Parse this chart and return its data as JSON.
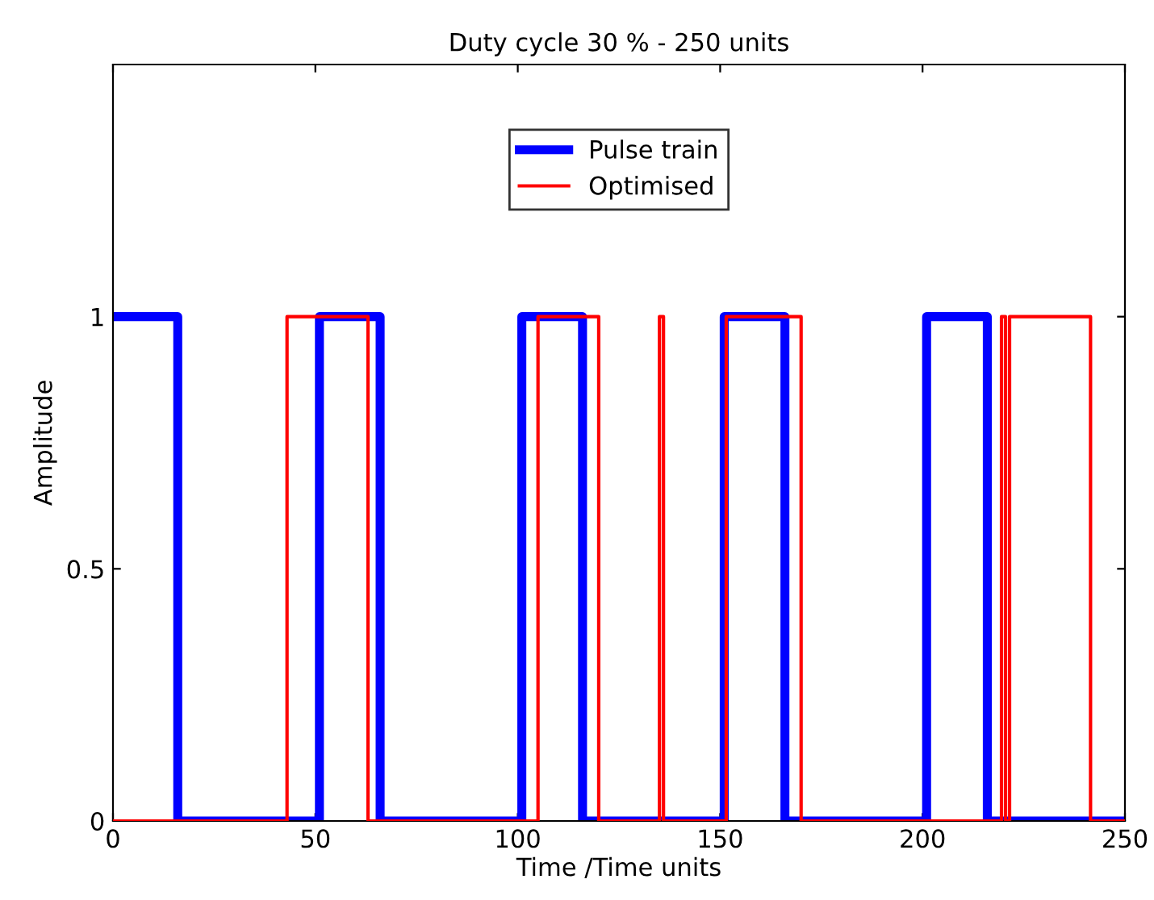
{
  "chart_data": {
    "type": "step",
    "title": "Duty cycle 30 % - 250 units",
    "xlabel": "Time /Time units",
    "ylabel": "Amplitude",
    "series": [
      {
        "name": "Pulse train",
        "color": "#0000ff",
        "x": [
          0,
          16,
          51,
          66,
          101,
          116,
          151,
          166,
          201,
          216,
          250
        ],
        "values": [
          1,
          0,
          1,
          0,
          1,
          0,
          1,
          0,
          1,
          0,
          0
        ]
      },
      {
        "name": "Optimised",
        "color": "#ff0000",
        "x": [
          0,
          43,
          63,
          105,
          120,
          135,
          136,
          151.5,
          170,
          219.5,
          220.5,
          221.5,
          241.5,
          250
        ],
        "values": [
          0,
          1,
          0,
          1,
          0,
          1,
          0,
          1,
          0,
          1,
          0,
          1,
          0,
          0
        ]
      }
    ],
    "xlim": [
      0,
      250
    ],
    "ylim": [
      0,
      1.5
    ],
    "xticks": [
      0,
      50,
      100,
      150,
      200,
      250
    ],
    "yticks": [
      0,
      0.5,
      1
    ],
    "grid": false,
    "legend": "top",
    "line_style": "solid",
    "marker": "none"
  }
}
